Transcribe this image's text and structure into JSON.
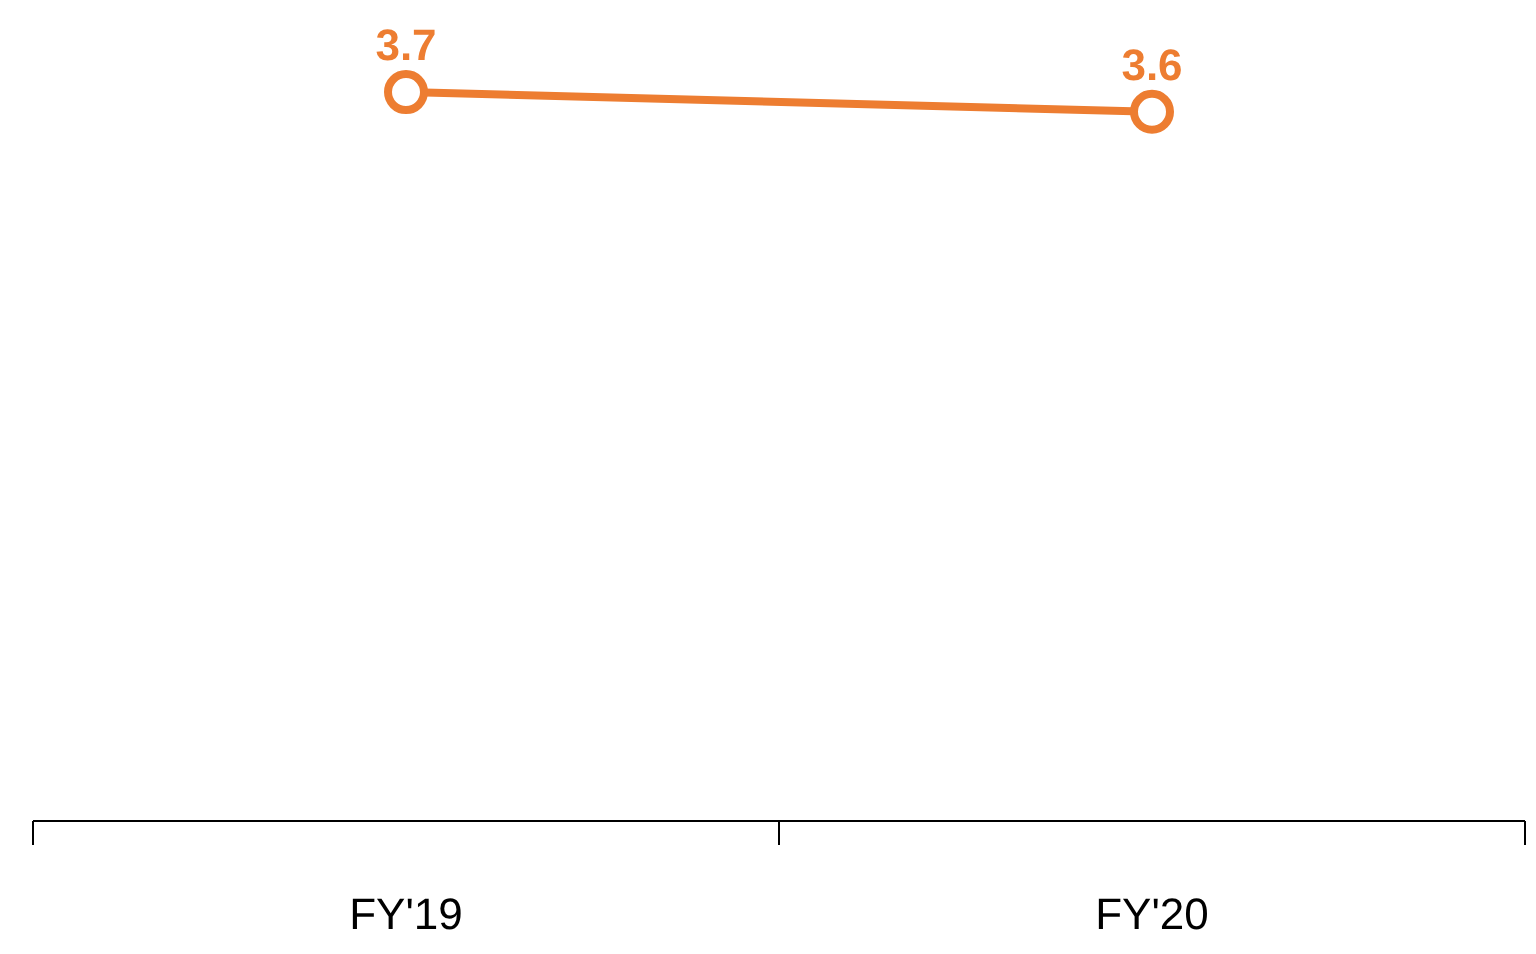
{
  "chart_data": {
    "type": "line",
    "categories": [
      "FY'19",
      "FY'20"
    ],
    "series": [
      {
        "color": "#ed7d31",
        "values": [
          3.7,
          3.6
        ]
      }
    ],
    "tick_labels": "x",
    "data_labels": true,
    "marker": "circle",
    "line_style": "solid"
  }
}
